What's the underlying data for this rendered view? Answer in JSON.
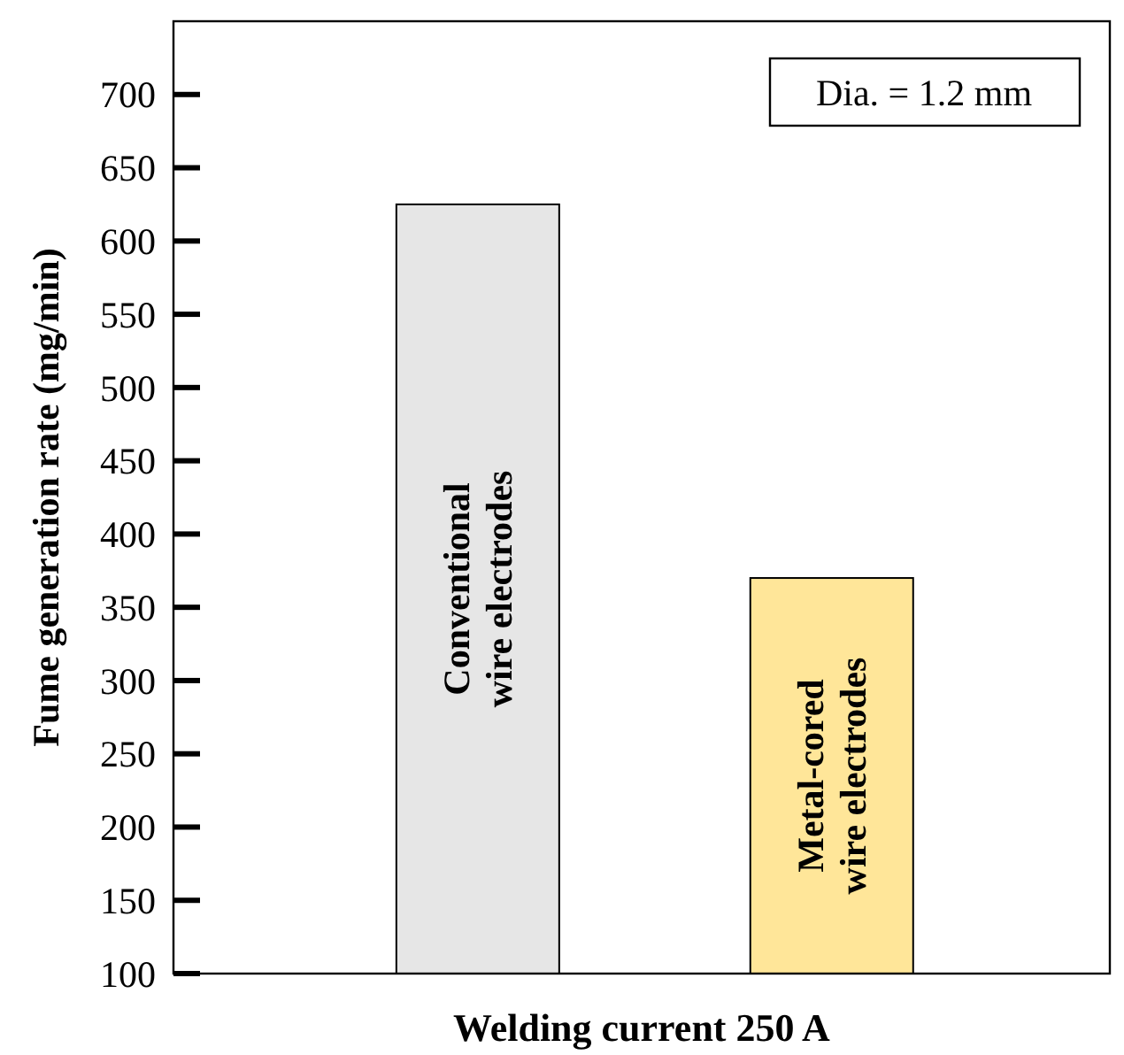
{
  "chart_data": {
    "type": "bar",
    "xlabel": "Welding current 250 A",
    "ylabel": "Fume generation rate (mg/min)",
    "categories": [
      "Conventional\nwire electrodes",
      "Metal-cored\nwire electrodes"
    ],
    "values": [
      625,
      370
    ],
    "colors": [
      "#e6e6e6",
      "#ffe699"
    ],
    "ylim": [
      100,
      750
    ],
    "yticks": [
      100,
      150,
      200,
      250,
      300,
      350,
      400,
      450,
      500,
      550,
      600,
      650,
      700
    ],
    "annotations": [
      "Dia. = 1.2 mm"
    ]
  }
}
